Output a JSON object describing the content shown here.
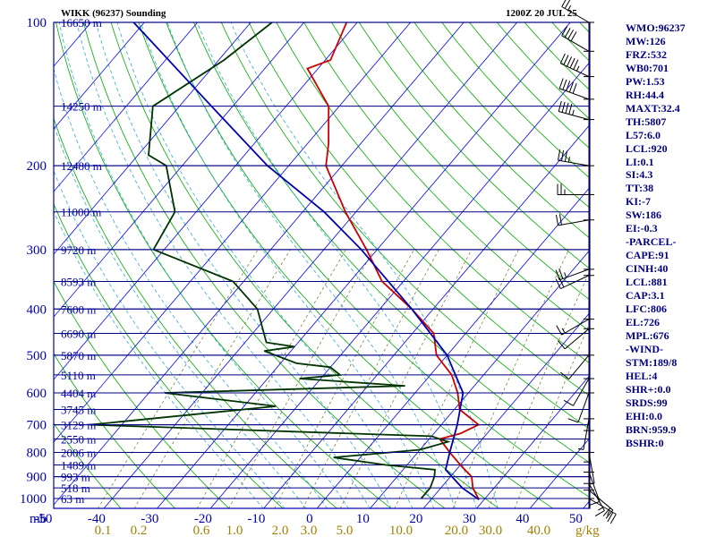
{
  "header": {
    "station": "WIKK (96237) Sounding",
    "time": "1200Z 20 JUL 25"
  },
  "chart_data": {
    "type": "line",
    "diagram": "Skew-T log-P",
    "x_unit_label": "mb",
    "y_unit_label": "g/kg",
    "pressure_levels": [
      100,
      200,
      300,
      400,
      500,
      600,
      700,
      800,
      900,
      1000
    ],
    "temp_ticks": [
      -50,
      -40,
      -30,
      -20,
      -10,
      0,
      10,
      20,
      30,
      40,
      50
    ],
    "mixing_ratio_ticks": [
      "0.1",
      "0.2",
      "0.6",
      "1.0",
      "2.0",
      "3.0",
      "5.0",
      "10.0",
      "20.0",
      "30.0",
      "40.0"
    ],
    "mixing_ratio_unit": "g/kg",
    "height_labels": [
      {
        "p": 100,
        "text": "16650 m"
      },
      {
        "p": 150,
        "text": "14250 m"
      },
      {
        "p": 200,
        "text": "12480 m"
      },
      {
        "p": 250,
        "text": "11000 m"
      },
      {
        "p": 300,
        "text": "9720 m"
      },
      {
        "p": 350,
        "text": "8593 m"
      },
      {
        "p": 400,
        "text": "7600 m"
      },
      {
        "p": 450,
        "text": "6690 m"
      },
      {
        "p": 500,
        "text": "5870 m"
      },
      {
        "p": 550,
        "text": "5110 m"
      },
      {
        "p": 600,
        "text": "4404 m"
      },
      {
        "p": 650,
        "text": "3745 m"
      },
      {
        "p": 700,
        "text": "3129 m"
      },
      {
        "p": 750,
        "text": "2550 m"
      },
      {
        "p": 800,
        "text": "2006 m"
      },
      {
        "p": 850,
        "text": "1489 m"
      },
      {
        "p": 900,
        "text": "993 m"
      },
      {
        "p": 950,
        "text": "518 m"
      },
      {
        "p": 1000,
        "text": "63 m"
      }
    ],
    "series": [
      {
        "color": "#cc0000",
        "points": [
          [
            100,
            -72
          ],
          [
            120,
            -69
          ],
          [
            125,
            -72
          ],
          [
            150,
            -62
          ],
          [
            180,
            -56
          ],
          [
            200,
            -53
          ],
          [
            250,
            -42
          ],
          [
            300,
            -32
          ],
          [
            350,
            -24
          ],
          [
            400,
            -14
          ],
          [
            450,
            -6
          ],
          [
            500,
            -2
          ],
          [
            550,
            4
          ],
          [
            600,
            8
          ],
          [
            650,
            11
          ],
          [
            700,
            17
          ],
          [
            730,
            15
          ],
          [
            750,
            12
          ],
          [
            800,
            16
          ],
          [
            850,
            20
          ],
          [
            900,
            24
          ],
          [
            950,
            26
          ],
          [
            1005,
            29
          ]
        ]
      },
      {
        "color": "#003300",
        "points": [
          [
            100,
            -86
          ],
          [
            120,
            -89
          ],
          [
            150,
            -95
          ],
          [
            190,
            -88
          ],
          [
            200,
            -83
          ],
          [
            250,
            -74
          ],
          [
            300,
            -72
          ],
          [
            350,
            -52
          ],
          [
            400,
            -43
          ],
          [
            470,
            -36
          ],
          [
            480,
            -30
          ],
          [
            490,
            -35
          ],
          [
            520,
            -27
          ],
          [
            530,
            -20
          ],
          [
            550,
            -17
          ],
          [
            560,
            -24
          ],
          [
            580,
            -3
          ],
          [
            600,
            -47
          ],
          [
            640,
            -24
          ],
          [
            700,
            -56
          ],
          [
            740,
            10
          ],
          [
            760,
            14
          ],
          [
            790,
            10
          ],
          [
            820,
            -5
          ],
          [
            850,
            6
          ],
          [
            870,
            16
          ],
          [
            900,
            17
          ],
          [
            950,
            18
          ],
          [
            1000,
            18
          ]
        ]
      },
      {
        "color": "#0000aa",
        "points": [
          [
            100,
            -112
          ],
          [
            150,
            -84
          ],
          [
            200,
            -64
          ],
          [
            250,
            -46
          ],
          [
            300,
            -33
          ],
          [
            400,
            -14
          ],
          [
            500,
            0
          ],
          [
            600,
            9
          ],
          [
            700,
            13
          ],
          [
            800,
            16
          ],
          [
            870,
            18
          ],
          [
            950,
            24
          ],
          [
            1005,
            29
          ]
        ]
      }
    ],
    "winds": [
      {
        "p": 100,
        "dir": 300,
        "spd": 25
      },
      {
        "p": 115,
        "dir": 300,
        "spd": 40
      },
      {
        "p": 130,
        "dir": 295,
        "spd": 55
      },
      {
        "p": 145,
        "dir": 290,
        "spd": 50
      },
      {
        "p": 160,
        "dir": 285,
        "spd": 45
      },
      {
        "p": 200,
        "dir": 280,
        "spd": 35
      },
      {
        "p": 230,
        "dir": 270,
        "spd": 25
      },
      {
        "p": 260,
        "dir": 260,
        "spd": 20
      },
      {
        "p": 330,
        "dir": 250,
        "spd": 25
      },
      {
        "p": 340,
        "dir": 245,
        "spd": 20
      },
      {
        "p": 420,
        "dir": 240,
        "spd": 15
      },
      {
        "p": 440,
        "dir": 230,
        "spd": 10
      },
      {
        "p": 500,
        "dir": 220,
        "spd": 10
      },
      {
        "p": 560,
        "dir": 210,
        "spd": 10
      },
      {
        "p": 600,
        "dir": 200,
        "spd": 10
      },
      {
        "p": 680,
        "dir": 190,
        "spd": 5
      },
      {
        "p": 720,
        "dir": 180,
        "spd": 5
      },
      {
        "p": 800,
        "dir": 170,
        "spd": 5
      },
      {
        "p": 880,
        "dir": 160,
        "spd": 10
      },
      {
        "p": 930,
        "dir": 150,
        "spd": 15
      },
      {
        "p": 960,
        "dir": 130,
        "spd": 20
      },
      {
        "p": 1000,
        "dir": 120,
        "spd": 25
      }
    ],
    "xlim": [
      -50,
      50
    ],
    "ylim": [
      100,
      1050
    ],
    "grid": true
  },
  "indices": [
    "WMO:96237",
    "MW:126",
    "FRZ:532",
    "WB0:701",
    "PW:1.53",
    "RH:44.4",
    "MAXT:32.4",
    "TH:5807",
    "L57:6.0",
    "LCL:920",
    "LI:0.1",
    "SI:4.3",
    "TT:38",
    "KI:-7",
    "SW:186",
    "EI:-0.3",
    "-PARCEL-",
    "CAPE:91",
    "CINH:40",
    "LCL:881",
    "CAP:3.1",
    "LFC:806",
    "EL:726",
    "MPL:676",
    "-WIND-",
    "STM:189/8",
    "HEL:4",
    "SHR+:0.0",
    "SRDS:99",
    "EHI:0.0",
    "BRN:959.9",
    "BSHR:0"
  ],
  "colors": {
    "frame": "#0000aa",
    "isotherm": "#0000ff",
    "dry_adiabat": "#00aa00",
    "moist_adiabat": "#33aadd",
    "mixing_ratio": "#808040"
  }
}
